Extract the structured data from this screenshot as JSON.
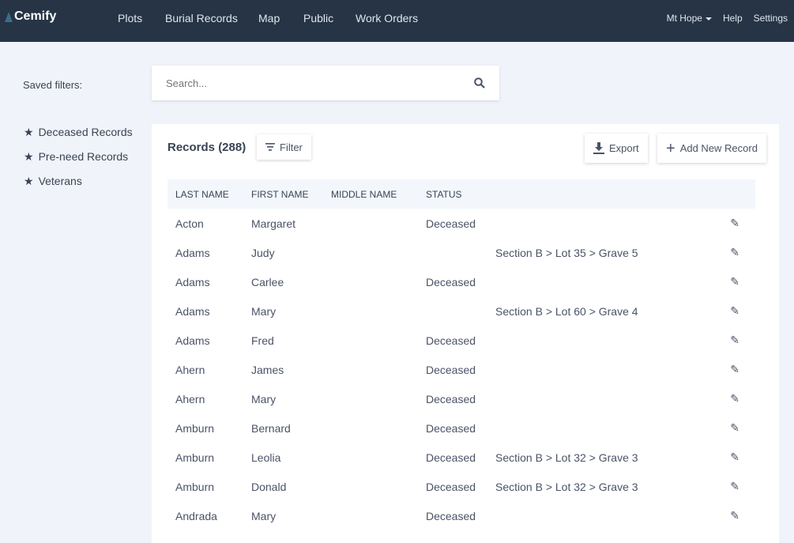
{
  "nav": {
    "brand": "Cemify",
    "items": [
      "Plots",
      "Burial Records",
      "Map",
      "Public",
      "Work Orders"
    ],
    "cemetery": "Mt Hope",
    "help": "Help",
    "settings": "Settings"
  },
  "sidebar": {
    "saved_label": "Saved filters:",
    "filters": [
      "Deceased Records",
      "Pre-need Records",
      "Veterans"
    ]
  },
  "search": {
    "placeholder": "Search..."
  },
  "records": {
    "title": "Records (288)",
    "filter": "Filter",
    "export": "Export",
    "add": "Add New Record",
    "columns": [
      "LAST NAME",
      "FIRST NAME",
      "MIDDLE NAME",
      "STATUS",
      ""
    ],
    "rows": [
      [
        "Acton",
        "Margaret",
        "",
        "Deceased",
        ""
      ],
      [
        "Adams",
        "Judy",
        "",
        "",
        "Section B > Lot 35 > Grave 5"
      ],
      [
        "Adams",
        "Carlee",
        "",
        "Deceased",
        ""
      ],
      [
        "Adams",
        "Mary",
        "",
        "",
        "Section B > Lot 60 > Grave 4"
      ],
      [
        "Adams",
        "Fred",
        "",
        "Deceased",
        ""
      ],
      [
        "Ahern",
        "James",
        "",
        "Deceased",
        ""
      ],
      [
        "Ahern",
        "Mary",
        "",
        "Deceased",
        ""
      ],
      [
        "Amburn",
        "Bernard",
        "",
        "Deceased",
        ""
      ],
      [
        "Amburn",
        "Leolia",
        "",
        "Deceased",
        "Section B > Lot 32 > Grave 3"
      ],
      [
        "Amburn",
        "Donald",
        "",
        "Deceased",
        "Section B > Lot 32 > Grave 3"
      ],
      [
        "Andrada",
        "Mary",
        "",
        "Deceased",
        ""
      ]
    ]
  }
}
